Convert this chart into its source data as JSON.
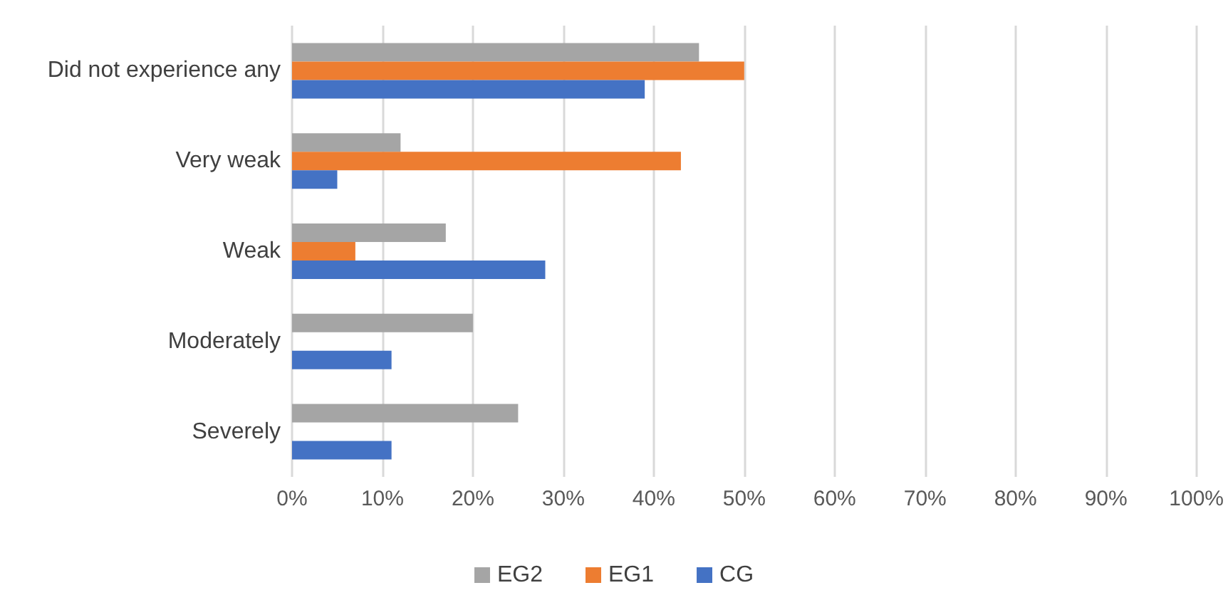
{
  "chart_data": {
    "type": "bar",
    "orientation": "horizontal",
    "categories": [
      "Did not experience any",
      "Very weak",
      "Weak",
      "Moderately",
      "Severely"
    ],
    "series": [
      {
        "name": "EG2",
        "color": "#a5a5a5",
        "values": [
          45,
          12,
          17,
          20,
          25
        ]
      },
      {
        "name": "EG1",
        "color": "#ed7d31",
        "values": [
          50,
          43,
          7,
          0,
          0
        ]
      },
      {
        "name": "CG",
        "color": "#4472c4",
        "values": [
          39,
          5,
          28,
          11,
          11
        ]
      }
    ],
    "xlim": [
      0,
      100
    ],
    "xticks": [
      {
        "value": 0,
        "label": "0%"
      },
      {
        "value": 10,
        "label": "10%"
      },
      {
        "value": 20,
        "label": "20%"
      },
      {
        "value": 30,
        "label": "30%"
      },
      {
        "value": 40,
        "label": "40%"
      },
      {
        "value": 50,
        "label": "50%"
      },
      {
        "value": 60,
        "label": "60%"
      },
      {
        "value": 70,
        "label": "70%"
      },
      {
        "value": 80,
        "label": "80%"
      },
      {
        "value": 90,
        "label": "90%"
      },
      {
        "value": 100,
        "label": "100%"
      }
    ],
    "grid": "x",
    "legend": "bottom"
  }
}
